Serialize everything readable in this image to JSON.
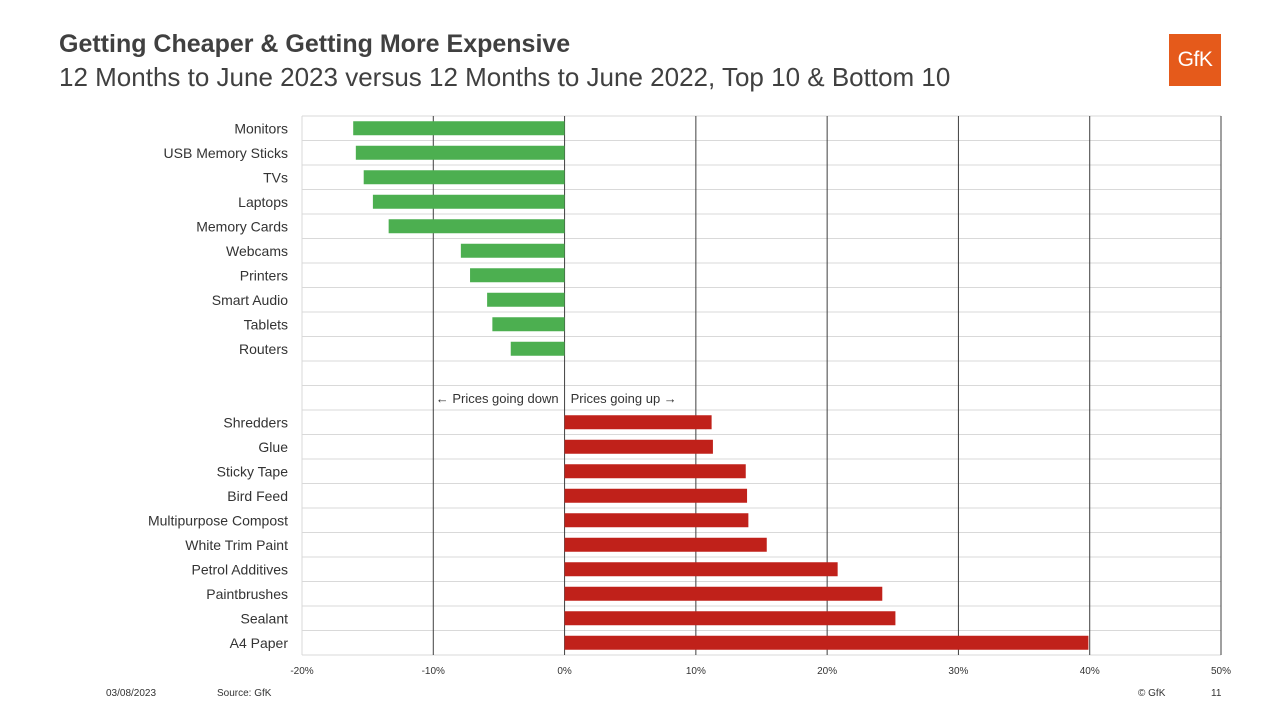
{
  "header": {
    "title": "Getting Cheaper & Getting More Expensive",
    "subtitle": "12 Months to June 2023 versus 12 Months to June 2022, Top 10 & Bottom 10",
    "logo_text": "GfK"
  },
  "footer": {
    "date": "03/08/2023",
    "source": "Source: GfK",
    "copyright": "© GfK",
    "page": "11"
  },
  "colors": {
    "negative": "#4caf50",
    "positive": "#c0211a",
    "grid": "#d9d9d9",
    "gridMajor": "#404040",
    "logo": "#e55a1b"
  },
  "chart_data": {
    "type": "bar",
    "orientation": "horizontal",
    "xlim": [
      -20,
      50
    ],
    "ticks": [
      -20,
      -10,
      0,
      10,
      20,
      30,
      40,
      50
    ],
    "tick_labels": [
      "-20%",
      "-10%",
      "0%",
      "10%",
      "20%",
      "30%",
      "40%",
      "50%"
    ],
    "annotation_left": "← Prices going down",
    "annotation_right": "Prices going up →",
    "decreases": [
      {
        "label": "Monitors",
        "value": -16.1
      },
      {
        "label": "USB Memory Sticks",
        "value": -15.9
      },
      {
        "label": "TVs",
        "value": -15.3
      },
      {
        "label": "Laptops",
        "value": -14.6
      },
      {
        "label": "Memory Cards",
        "value": -13.4
      },
      {
        "label": "Webcams",
        "value": -7.9
      },
      {
        "label": "Printers",
        "value": -7.2
      },
      {
        "label": "Smart Audio",
        "value": -5.9
      },
      {
        "label": "Tablets",
        "value": -5.5
      },
      {
        "label": "Routers",
        "value": -4.1
      }
    ],
    "increases": [
      {
        "label": "Shredders",
        "value": 11.2
      },
      {
        "label": "Glue",
        "value": 11.3
      },
      {
        "label": "Sticky Tape",
        "value": 13.8
      },
      {
        "label": "Bird Feed",
        "value": 13.9
      },
      {
        "label": "Multipurpose Compost",
        "value": 14.0
      },
      {
        "label": "White Trim Paint",
        "value": 15.4
      },
      {
        "label": "Petrol Additives",
        "value": 20.8
      },
      {
        "label": "Paintbrushes",
        "value": 24.2
      },
      {
        "label": "Sealant",
        "value": 25.2
      },
      {
        "label": "A4 Paper",
        "value": 39.9
      }
    ]
  }
}
